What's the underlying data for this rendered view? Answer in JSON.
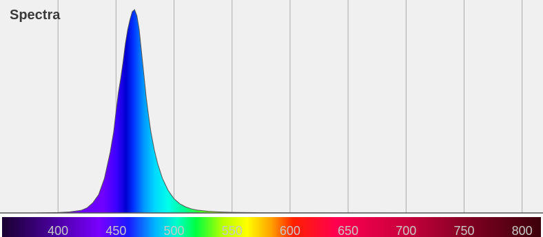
{
  "chart_data": {
    "type": "area",
    "title": "Spectra",
    "xlabel": "",
    "ylabel": "",
    "xlim": [
      350,
      818
    ],
    "ylim": [
      0,
      1
    ],
    "grid": true,
    "x_ticks": [
      400,
      450,
      500,
      550,
      600,
      650,
      700,
      750,
      800
    ],
    "x_tick_labels": [
      "400",
      "450",
      "500",
      "550",
      "600",
      "650",
      "700",
      "750",
      "800"
    ],
    "series": [
      {
        "x": [
          380,
          400,
          410,
          420,
          425,
          430,
          435,
          440,
          445,
          448,
          450,
          452,
          454,
          456,
          458,
          460,
          462,
          464,
          466,
          468,
          470,
          472,
          474,
          476,
          478,
          480,
          483,
          486,
          490,
          495,
          500,
          505,
          510,
          515,
          520,
          530,
          540,
          550,
          570,
          600,
          650,
          700,
          750,
          800
        ],
        "y": [
          0,
          0.002,
          0.005,
          0.013,
          0.025,
          0.05,
          0.09,
          0.17,
          0.3,
          0.4,
          0.5,
          0.59,
          0.66,
          0.74,
          0.83,
          0.9,
          0.95,
          0.99,
          1.0,
          0.97,
          0.9,
          0.79,
          0.68,
          0.57,
          0.48,
          0.4,
          0.31,
          0.24,
          0.17,
          0.11,
          0.07,
          0.045,
          0.03,
          0.02,
          0.014,
          0.008,
          0.005,
          0.003,
          0.0015,
          0.0008,
          0.0004,
          0.0002,
          0.0001,
          0
        ]
      }
    ]
  },
  "colors": {
    "plot_background": "#f0f0f0",
    "grid": "#aaaaaa",
    "baseline": "#555555",
    "curve_stroke": "#555555",
    "title": "#3a3a3a",
    "tick_label": "#c8c8c8"
  }
}
